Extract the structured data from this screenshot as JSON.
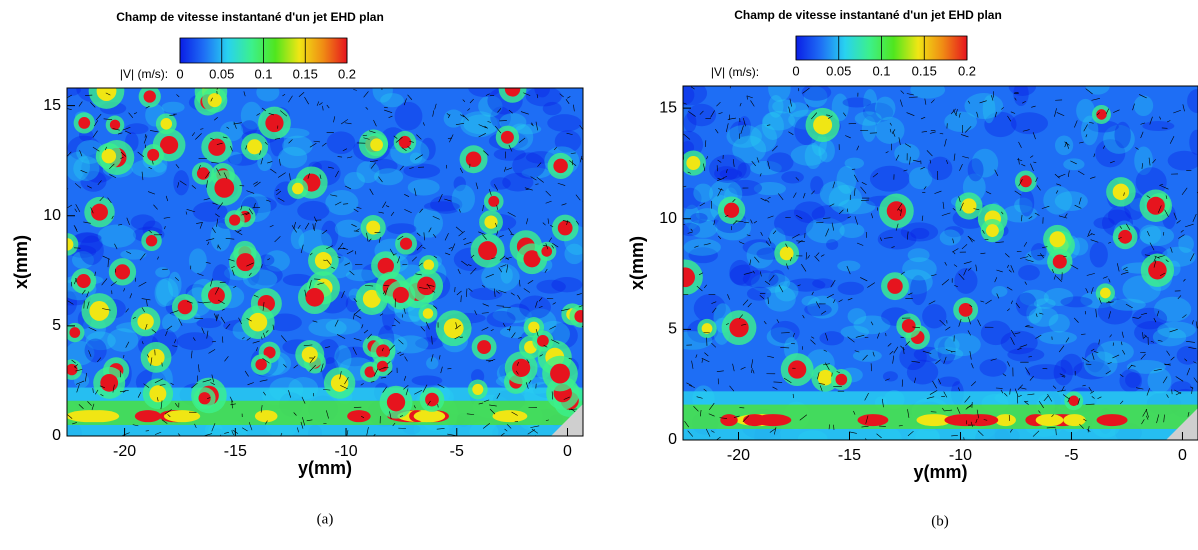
{
  "chart_data": [
    {
      "type": "heatmap",
      "title": "Champ de vitesse instantané d'un jet EHD plan",
      "colorbar": {
        "label": "|V| (m/s):",
        "lim": [
          0,
          0.2
        ],
        "ticks": [
          0,
          0.05,
          0.1,
          0.15,
          0.2
        ],
        "colors": [
          "#0a1ee6",
          "#1e6ef5",
          "#28d2f0",
          "#3cf08c",
          "#50e61e",
          "#f0e614",
          "#f08c14",
          "#e6141e"
        ]
      },
      "xlabel": "y(mm)",
      "ylabel": "x(mm)",
      "xlim": [
        -22.6,
        0.7
      ],
      "ylim": [
        0,
        15.8
      ],
      "xticks": [
        -20,
        -15,
        -10,
        -5,
        0
      ],
      "yticks": [
        0,
        5,
        10,
        15
      ],
      "caption": "(a)"
    },
    {
      "type": "heatmap",
      "title": "Champ de vitesse instantané d'un jet EHD plan",
      "colorbar": {
        "label": "|V| (m/s):",
        "lim": [
          0,
          0.2
        ],
        "ticks": [
          0,
          0.05,
          0.1,
          0.15,
          0.2
        ],
        "colors": [
          "#0a1ee6",
          "#1e6ef5",
          "#28d2f0",
          "#3cf08c",
          "#50e61e",
          "#f0e614",
          "#f08c14",
          "#e6141e"
        ]
      },
      "xlabel": "y(mm)",
      "ylabel": "x(mm)",
      "xlim": [
        -22.5,
        0.7
      ],
      "ylim": [
        0,
        16
      ],
      "xticks": [
        -20,
        -15,
        -10,
        -5,
        0
      ],
      "yticks": [
        0,
        5,
        10,
        15
      ],
      "caption": "(b)"
    }
  ]
}
